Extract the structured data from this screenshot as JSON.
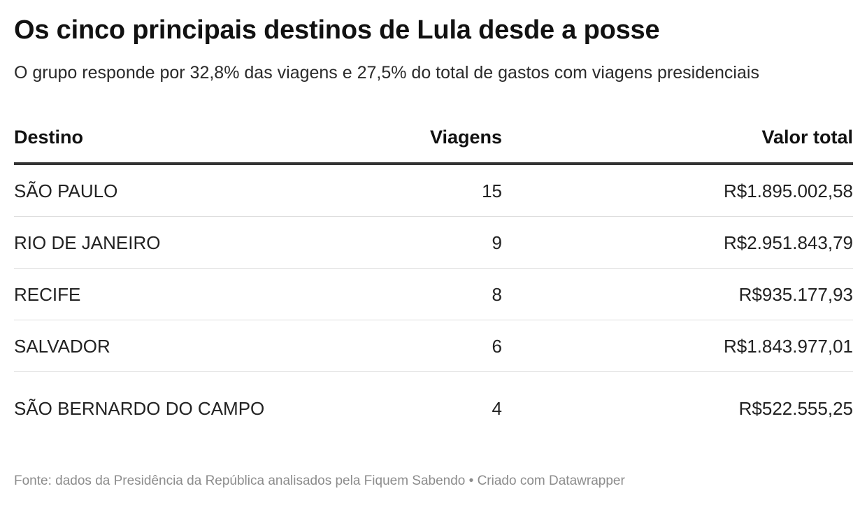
{
  "title": "Os cinco principais destinos de Lula desde a posse",
  "subtitle": "O grupo responde por 32,8% das viagens e 27,5% do total de gastos com viagens presidenciais",
  "footer": "Fonte: dados da Presidência da República analisados pela Fiquem Sabendo • Criado com Datawrapper",
  "chart_data": {
    "type": "table",
    "columns": [
      "Destino",
      "Viagens",
      "Valor total"
    ],
    "rows": [
      {
        "destino": "SÃO PAULO",
        "viagens": "15",
        "valor": "R$1.895.002,58"
      },
      {
        "destino": "RIO DE JANEIRO",
        "viagens": "9",
        "valor": "R$2.951.843,79"
      },
      {
        "destino": "RECIFE",
        "viagens": "8",
        "valor": "R$935.177,93"
      },
      {
        "destino": "SALVADOR",
        "viagens": "6",
        "valor": "R$1.843.977,01"
      },
      {
        "destino": "SÃO BERNARDO DO CAMPO",
        "viagens": "4",
        "valor": "R$522.555,25"
      }
    ]
  }
}
